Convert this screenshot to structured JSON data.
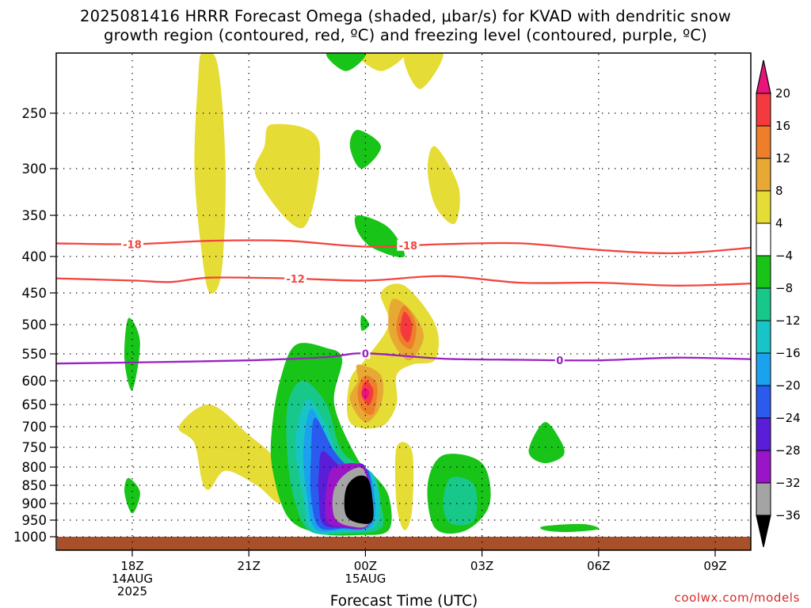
{
  "title_line1": "2025081416 HRRR Forecast Omega (shaded, μbar/s) for KVAD with dendritic snow",
  "title_line2": "growth region (contoured, red, ºC) and freezing level (contoured, purple, ºC)",
  "credit": "coolwx.com/models",
  "chart_data": {
    "type": "heatmap",
    "xlabel": "Forecast Time (UTC)",
    "ylabel": "",
    "x_ticks": [
      {
        "label": "18Z",
        "sub": [
          "14AUG",
          "2025"
        ],
        "hour": 0
      },
      {
        "label": "21Z",
        "sub": [],
        "hour": 3
      },
      {
        "label": "00Z",
        "sub": [
          "15AUG"
        ],
        "hour": 6
      },
      {
        "label": "03Z",
        "sub": [],
        "hour": 9
      },
      {
        "label": "06Z",
        "sub": [],
        "hour": 12
      },
      {
        "label": "09Z",
        "sub": [],
        "hour": 15
      }
    ],
    "xlim_hours": [
      -2,
      16
    ],
    "y_ticks": [
      250,
      300,
      350,
      400,
      450,
      500,
      550,
      600,
      650,
      700,
      750,
      800,
      850,
      900,
      950,
      1000
    ],
    "ylim_hPa": [
      1008,
      200
    ],
    "grid": true,
    "colorbar": {
      "levels": [
        20,
        16,
        12,
        8,
        4,
        -4,
        -8,
        -12,
        -16,
        -20,
        -24,
        -28,
        -32,
        -36
      ],
      "colors": [
        "#e8147c",
        "#f43a3e",
        "#ee7e2a",
        "#e8a834",
        "#e6dc36",
        "#ffffff",
        "#18c418",
        "#18c88a",
        "#18c4c8",
        "#1aa2ee",
        "#2a5aee",
        "#5a1ed8",
        "#9a14c8",
        "#a4a4a4",
        "#000000"
      ]
    },
    "contours": [
      {
        "name": "-18",
        "color": "#f2453e",
        "label_hour": 0,
        "label_2_hour": 7.1,
        "points": [
          [
            -2,
            384
          ],
          [
            0,
            385
          ],
          [
            2,
            381
          ],
          [
            4,
            381
          ],
          [
            6,
            388
          ],
          [
            8,
            385
          ],
          [
            10,
            384
          ],
          [
            12,
            392
          ],
          [
            14,
            396
          ],
          [
            16,
            389
          ]
        ]
      },
      {
        "name": "-12",
        "color": "#f2453e",
        "label_hour": 4.2,
        "points": [
          [
            -2,
            430
          ],
          [
            0,
            433
          ],
          [
            1,
            435
          ],
          [
            2,
            429
          ],
          [
            4,
            430
          ],
          [
            6,
            433
          ],
          [
            8,
            427
          ],
          [
            10,
            436
          ],
          [
            12,
            436
          ],
          [
            14,
            440
          ],
          [
            16,
            437
          ]
        ]
      },
      {
        "name": "0",
        "color": "#9a22c0",
        "label_hour": 6,
        "label_2_hour": 11,
        "points": [
          [
            -2,
            568
          ],
          [
            0,
            566
          ],
          [
            3,
            562
          ],
          [
            5,
            556
          ],
          [
            6,
            549
          ],
          [
            8,
            559
          ],
          [
            10,
            561
          ],
          [
            12,
            562
          ],
          [
            14,
            557
          ],
          [
            16,
            560
          ]
        ]
      }
    ],
    "omega_regions": [
      {
        "level": 4,
        "points": [
          [
            1.8,
            200
          ],
          [
            2.2,
            210
          ],
          [
            2.4,
            300
          ],
          [
            2.3,
            420
          ],
          [
            2.0,
            450
          ],
          [
            1.8,
            400
          ],
          [
            1.6,
            300
          ],
          [
            1.7,
            220
          ]
        ]
      },
      {
        "level": 4,
        "points": [
          [
            3.6,
            260
          ],
          [
            4.8,
            275
          ],
          [
            4.4,
            365
          ],
          [
            3.2,
            310
          ],
          [
            3.4,
            280
          ]
        ]
      },
      {
        "level": 4,
        "points": [
          [
            5.8,
            200
          ],
          [
            7.0,
            200
          ],
          [
            6.4,
            215
          ]
        ]
      },
      {
        "level": 4,
        "points": [
          [
            7.8,
            280
          ],
          [
            8.4,
            320
          ],
          [
            8.3,
            360
          ],
          [
            7.8,
            340
          ],
          [
            7.6,
            300
          ]
        ]
      },
      {
        "level": 4,
        "points": [
          [
            1.2,
            700
          ],
          [
            2.0,
            650
          ],
          [
            3.0,
            720
          ],
          [
            3.6,
            770
          ],
          [
            4.0,
            840
          ],
          [
            3.8,
            900
          ],
          [
            3.2,
            850
          ],
          [
            2.4,
            810
          ],
          [
            2.0,
            860
          ],
          [
            1.8,
            840
          ],
          [
            1.6,
            740
          ]
        ]
      },
      {
        "level": 4,
        "points": [
          [
            6.4,
            450
          ],
          [
            7.0,
            440
          ],
          [
            7.8,
            500
          ],
          [
            7.8,
            560
          ],
          [
            7.2,
            570
          ],
          [
            6.8,
            590
          ],
          [
            6.8,
            650
          ],
          [
            6.4,
            700
          ],
          [
            5.6,
            690
          ],
          [
            5.6,
            600
          ],
          [
            6.0,
            560
          ],
          [
            6.6,
            500
          ]
        ]
      },
      {
        "level": 4,
        "points": [
          [
            6.8,
            750
          ],
          [
            7.2,
            760
          ],
          [
            7.2,
            920
          ],
          [
            7.0,
            980
          ],
          [
            6.8,
            900
          ]
        ]
      },
      {
        "level": -4,
        "points": [
          [
            -0.1,
            490
          ],
          [
            0.2,
            530
          ],
          [
            0.0,
            620
          ],
          [
            -0.2,
            560
          ]
        ]
      },
      {
        "level": -4,
        "points": [
          [
            -0.1,
            830
          ],
          [
            0.2,
            870
          ],
          [
            0.0,
            930
          ],
          [
            -0.2,
            870
          ]
        ]
      },
      {
        "level": -4,
        "points": [
          [
            5.0,
            200
          ],
          [
            6.0,
            200
          ],
          [
            5.5,
            215
          ]
        ]
      },
      {
        "level": -4,
        "points": [
          [
            5.8,
            265
          ],
          [
            6.4,
            280
          ],
          [
            5.9,
            300
          ],
          [
            5.6,
            280
          ]
        ]
      },
      {
        "level": -4,
        "points": [
          [
            5.8,
            350
          ],
          [
            6.6,
            365
          ],
          [
            7.0,
            400
          ],
          [
            6.2,
            390
          ],
          [
            5.8,
            370
          ]
        ]
      },
      {
        "level": -4,
        "points": [
          [
            5.9,
            485
          ],
          [
            6.1,
            500
          ],
          [
            5.9,
            510
          ]
        ]
      },
      {
        "level": -4,
        "points": [
          [
            4.2,
            535
          ],
          [
            5.0,
            540
          ],
          [
            5.4,
            560
          ],
          [
            5.2,
            650
          ],
          [
            5.8,
            780
          ],
          [
            6.2,
            820
          ],
          [
            6.6,
            880
          ],
          [
            6.6,
            980
          ],
          [
            5.8,
            995
          ],
          [
            4.8,
            990
          ],
          [
            4.0,
            940
          ],
          [
            3.6,
            800
          ],
          [
            3.6,
            700
          ],
          [
            3.8,
            600
          ]
        ]
      },
      {
        "level": -4,
        "points": [
          [
            8.0,
            770
          ],
          [
            9.0,
            790
          ],
          [
            9.2,
            900
          ],
          [
            8.6,
            980
          ],
          [
            7.8,
            975
          ],
          [
            7.6,
            850
          ]
        ]
      },
      {
        "level": -4,
        "points": [
          [
            10.6,
            690
          ],
          [
            11.0,
            730
          ],
          [
            11.1,
            770
          ],
          [
            10.6,
            790
          ],
          [
            10.2,
            760
          ]
        ]
      },
      {
        "level": -4,
        "points": [
          [
            10.6,
            968
          ],
          [
            11.6,
            962
          ],
          [
            12.0,
            977
          ],
          [
            11.2,
            986
          ],
          [
            10.6,
            980
          ]
        ]
      },
      {
        "level": -8,
        "points": [
          [
            8.2,
            830
          ],
          [
            8.8,
            850
          ],
          [
            8.8,
            950
          ],
          [
            8.2,
            960
          ],
          [
            8.0,
            900
          ]
        ]
      },
      {
        "level": -8,
        "points": [
          [
            4.4,
            600
          ],
          [
            5.0,
            650
          ],
          [
            5.4,
            760
          ],
          [
            6.2,
            820
          ],
          [
            6.4,
            900
          ],
          [
            6.4,
            975
          ],
          [
            5.6,
            990
          ],
          [
            4.6,
            985
          ],
          [
            4.2,
            900
          ],
          [
            4.0,
            780
          ],
          [
            4.0,
            650
          ]
        ]
      },
      {
        "level": -12,
        "points": [
          [
            4.5,
            640
          ],
          [
            5.0,
            700
          ],
          [
            5.4,
            790
          ],
          [
            6.2,
            820
          ],
          [
            6.3,
            960
          ],
          [
            5.4,
            985
          ],
          [
            4.6,
            980
          ],
          [
            4.4,
            880
          ],
          [
            4.2,
            740
          ]
        ]
      },
      {
        "level": -16,
        "points": [
          [
            4.6,
            660
          ],
          [
            5.0,
            730
          ],
          [
            5.4,
            800
          ],
          [
            6.1,
            815
          ],
          [
            6.2,
            960
          ],
          [
            5.4,
            980
          ],
          [
            4.7,
            975
          ],
          [
            4.5,
            880
          ],
          [
            4.4,
            760
          ]
        ]
      },
      {
        "level": -20,
        "points": [
          [
            4.7,
            680
          ],
          [
            5.2,
            760
          ],
          [
            5.6,
            800
          ],
          [
            6.1,
            815
          ],
          [
            6.1,
            960
          ],
          [
            5.4,
            975
          ],
          [
            4.8,
            970
          ],
          [
            4.6,
            880
          ],
          [
            4.6,
            780
          ]
        ]
      },
      {
        "level": -24,
        "points": [
          [
            4.9,
            760
          ],
          [
            5.4,
            800
          ],
          [
            6.0,
            800
          ],
          [
            6.1,
            960
          ],
          [
            5.4,
            972
          ],
          [
            4.9,
            960
          ],
          [
            4.8,
            880
          ],
          [
            4.8,
            820
          ]
        ]
      },
      {
        "level": -28,
        "points": [
          [
            5.2,
            800
          ],
          [
            6.0,
            805
          ],
          [
            6.1,
            960
          ],
          [
            5.4,
            970
          ],
          [
            5.0,
            950
          ],
          [
            5.0,
            860
          ]
        ]
      },
      {
        "level": -32,
        "points": [
          [
            5.6,
            810
          ],
          [
            6.0,
            815
          ],
          [
            6.1,
            955
          ],
          [
            5.6,
            968
          ],
          [
            5.2,
            940
          ],
          [
            5.2,
            860
          ]
        ]
      },
      {
        "level": -36,
        "points": [
          [
            5.8,
            825
          ],
          [
            6.1,
            840
          ],
          [
            6.2,
            945
          ],
          [
            5.9,
            960
          ],
          [
            5.5,
            935
          ],
          [
            5.5,
            860
          ]
        ]
      },
      {
        "level": 8,
        "points": [
          [
            6.7,
            460
          ],
          [
            7.2,
            480
          ],
          [
            7.5,
            520
          ],
          [
            7.2,
            560
          ],
          [
            6.9,
            550
          ],
          [
            6.6,
            510
          ]
        ]
      },
      {
        "level": 8,
        "points": [
          [
            5.8,
            570
          ],
          [
            6.4,
            590
          ],
          [
            6.4,
            650
          ],
          [
            6.0,
            690
          ],
          [
            5.6,
            640
          ],
          [
            5.8,
            600
          ]
        ]
      },
      {
        "level": 12,
        "points": [
          [
            7.0,
            470
          ],
          [
            7.3,
            500
          ],
          [
            7.2,
            540
          ],
          [
            6.9,
            530
          ],
          [
            6.8,
            500
          ]
        ]
      },
      {
        "level": 12,
        "points": [
          [
            6.0,
            590
          ],
          [
            6.3,
            610
          ],
          [
            6.2,
            670
          ],
          [
            5.9,
            660
          ],
          [
            5.8,
            620
          ]
        ]
      },
      {
        "level": 16,
        "points": [
          [
            7.0,
            480
          ],
          [
            7.2,
            500
          ],
          [
            7.1,
            530
          ],
          [
            6.9,
            510
          ]
        ]
      },
      {
        "level": 16,
        "points": [
          [
            6.0,
            600
          ],
          [
            6.2,
            620
          ],
          [
            6.1,
            650
          ],
          [
            5.9,
            630
          ]
        ]
      },
      {
        "level": 20,
        "points": [
          [
            6.0,
            615
          ],
          [
            6.1,
            625
          ],
          [
            6.0,
            640
          ],
          [
            5.9,
            625
          ]
        ]
      },
      {
        "level": 4,
        "points": [
          [
            8.0,
            200
          ],
          [
            7.0,
            200
          ],
          [
            7.4,
            230
          ]
        ]
      }
    ]
  }
}
